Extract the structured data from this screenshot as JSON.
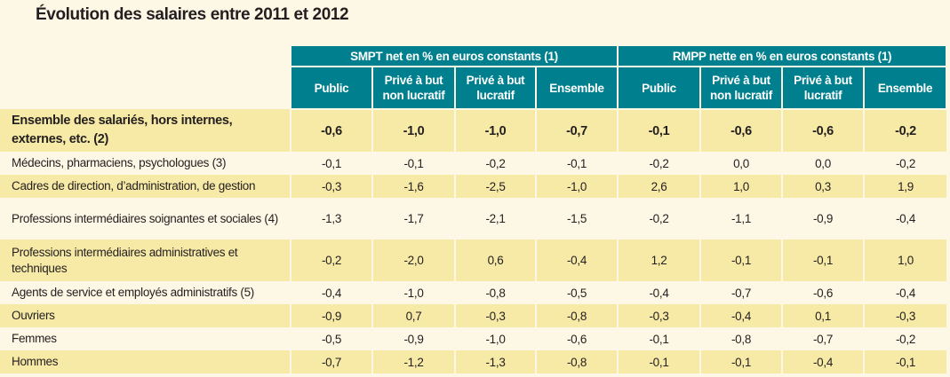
{
  "title": "Évolution des salaires entre 2011 et 2012",
  "colors": {
    "header": "#00808e",
    "background": "#fdf8e5",
    "highlight": "#f7eaa6"
  },
  "groups": [
    "SMPT net en % en euros constants (1)",
    "RMPP nette en % en euros constants (1)"
  ],
  "columns": [
    "Public",
    "Privé à but non lucratif",
    "Privé à but lucratif",
    "Ensemble",
    "Public",
    "Privé à but non lucratif",
    "Privé à but lucratif",
    "Ensemble"
  ],
  "rows": [
    {
      "label": "Ensemble des salariés, hors internes, externes, etc. (2)",
      "values": [
        "-0,6",
        "-1,0",
        "-1,0",
        "-0,7",
        "-0,1",
        "-0,6",
        "-0,6",
        "-0,2"
      ]
    },
    {
      "label": "Médecins, pharmaciens, psychologues (3)",
      "values": [
        "-0,1",
        "-0,1",
        "-0,2",
        "-0,1",
        "-0,2",
        "0,0",
        "0,0",
        "-0,2"
      ]
    },
    {
      "label": "Cadres de direction, d’administration, de gestion",
      "values": [
        "-0,3",
        "-1,6",
        "-2,5",
        "-1,0",
        "2,6",
        "1,0",
        "0,3",
        "1,9"
      ]
    },
    {
      "label": "Professions intermédiaires soignantes et sociales (4)",
      "values": [
        "-1,3",
        "-1,7",
        "-2,1",
        "-1,5",
        "-0,2",
        "-1,1",
        "-0,9",
        "-0,4"
      ]
    },
    {
      "label": "Professions intermédiaires administratives et techniques",
      "values": [
        "-0,2",
        "-2,0",
        "0,6",
        "-0,4",
        "1,2",
        "-0,1",
        "-0,1",
        "1,0"
      ]
    },
    {
      "label": "Agents de service et employés administratifs (5)",
      "values": [
        "-0,4",
        "-1,0",
        "-0,8",
        "-0,5",
        "-0,4",
        "-0,7",
        "-0,6",
        "-0,4"
      ]
    },
    {
      "label": "Ouvriers",
      "values": [
        "-0,9",
        "0,7",
        "-0,3",
        "-0,8",
        "-0,3",
        "-0,4",
        "0,1",
        "-0,3"
      ]
    },
    {
      "label": "Femmes",
      "values": [
        "-0,5",
        "-0,9",
        "-1,0",
        "-0,6",
        "-0,1",
        "-0,8",
        "-0,7",
        "-0,2"
      ]
    },
    {
      "label": "Hommes",
      "values": [
        "-0,7",
        "-1,2",
        "-1,3",
        "-0,8",
        "-0,1",
        "-0,1",
        "-0,4",
        "-0,1"
      ]
    }
  ]
}
